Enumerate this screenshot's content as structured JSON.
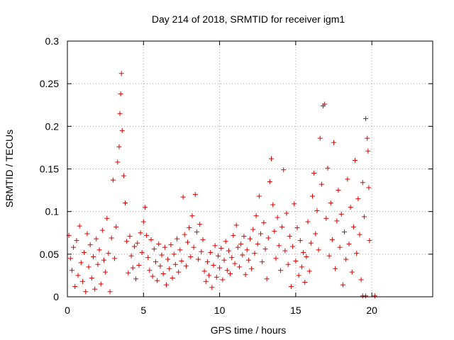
{
  "chart_data": {
    "type": "scatter",
    "title": "Day 214 of 2018, SRMTID for receiver igm1",
    "xlabel": "GPS time / hours",
    "ylabel": "SRMTID / TECUs",
    "xlim": [
      0,
      24
    ],
    "ylim": [
      0,
      0.3
    ],
    "xticks": [
      0,
      5,
      10,
      15,
      20
    ],
    "yticks": [
      0,
      0.05,
      0.1,
      0.15,
      0.2,
      0.25,
      0.3
    ],
    "xtick_labels": [
      "0",
      "5",
      "10",
      "15",
      "20"
    ],
    "ytick_labels": [
      "0",
      "0.05",
      "0.1",
      "0.15",
      "0.2",
      "0.25",
      "0.3"
    ],
    "grid": true,
    "marker": "+",
    "marker_color": "#e00000",
    "series": [
      {
        "name": "SRMTID",
        "points": [
          [
            0.1,
            0.072
          ],
          [
            0.2,
            0.045
          ],
          [
            0.3,
            0.031
          ],
          [
            0.4,
            0.058
          ],
          [
            0.5,
            0.012
          ],
          [
            0.6,
            0.066
          ],
          [
            0.7,
            0.025
          ],
          [
            0.8,
            0.083
          ],
          [
            0.9,
            0.04
          ],
          [
            1.0,
            0.018
          ],
          [
            1.1,
            0.052
          ],
          [
            1.2,
            0.006
          ],
          [
            1.3,
            0.074
          ],
          [
            1.4,
            0.035
          ],
          [
            1.5,
            0.061
          ],
          [
            1.6,
            0.022
          ],
          [
            1.7,
            0.047
          ],
          [
            1.8,
            0.009
          ],
          [
            1.9,
            0.068
          ],
          [
            2.0,
            0.038
          ],
          [
            2.1,
            0.055
          ],
          [
            2.2,
            0.015
          ],
          [
            2.3,
            0.078
          ],
          [
            2.4,
            0.043
          ],
          [
            2.5,
            0.029
          ],
          [
            2.6,
            0.092
          ],
          [
            2.7,
            0.051
          ],
          [
            2.8,
            0.006
          ],
          [
            2.9,
            0.069
          ],
          [
            3.0,
            0.137
          ],
          [
            3.1,
            0.045
          ],
          [
            3.2,
            0.082
          ],
          [
            3.3,
            0.158
          ],
          [
            3.4,
            0.176
          ],
          [
            3.45,
            0.215
          ],
          [
            3.5,
            0.238
          ],
          [
            3.55,
            0.262
          ],
          [
            3.6,
            0.195
          ],
          [
            3.7,
            0.142
          ],
          [
            3.8,
            0.11
          ],
          [
            3.9,
            0.065
          ],
          [
            4.0,
            0.028
          ],
          [
            4.1,
            0.071
          ],
          [
            4.2,
            0.048
          ],
          [
            4.3,
            0.034
          ],
          [
            4.4,
            0.059
          ],
          [
            4.5,
            0.021
          ],
          [
            4.6,
            0.063
          ],
          [
            4.7,
            0.037
          ],
          [
            4.8,
            0.075
          ],
          [
            4.9,
            0.052
          ],
          [
            5.0,
            0.088
          ],
          [
            5.1,
            0.105
          ],
          [
            5.2,
            0.072
          ],
          [
            5.3,
            0.046
          ],
          [
            5.4,
            0.031
          ],
          [
            5.5,
            0.067
          ],
          [
            5.6,
            0.024
          ],
          [
            5.7,
            0.056
          ],
          [
            5.8,
            0.041
          ],
          [
            5.9,
            0.019
          ],
          [
            6.0,
            0.062
          ],
          [
            6.1,
            0.036
          ],
          [
            6.2,
            0.049
          ],
          [
            6.3,
            0.027
          ],
          [
            6.4,
            0.058
          ],
          [
            6.5,
            0.014
          ],
          [
            6.6,
            0.044
          ],
          [
            6.7,
            0.033
          ],
          [
            6.8,
            0.061
          ],
          [
            6.9,
            0.022
          ],
          [
            7.0,
            0.05
          ],
          [
            7.1,
            0.038
          ],
          [
            7.2,
            0.068
          ],
          [
            7.3,
            0.029
          ],
          [
            7.4,
            0.055
          ],
          [
            7.5,
            0.042
          ],
          [
            7.6,
            0.117
          ],
          [
            7.7,
            0.073
          ],
          [
            7.8,
            0.036
          ],
          [
            7.9,
            0.064
          ],
          [
            8.0,
            0.081
          ],
          [
            8.1,
            0.047
          ],
          [
            8.2,
            0.095
          ],
          [
            8.3,
            0.058
          ],
          [
            8.4,
            0.12
          ],
          [
            8.5,
            0.076
          ],
          [
            8.6,
            0.044
          ],
          [
            8.7,
            0.085
          ],
          [
            8.8,
            0.053
          ],
          [
            8.9,
            0.067
          ],
          [
            9.0,
            0.03
          ],
          [
            9.1,
            0.018
          ],
          [
            9.2,
            0.041
          ],
          [
            9.3,
            0.025
          ],
          [
            9.4,
            0.052
          ],
          [
            9.5,
            0.011
          ],
          [
            9.6,
            0.037
          ],
          [
            9.7,
            0.06
          ],
          [
            9.8,
            0.023
          ],
          [
            9.9,
            0.048
          ],
          [
            10.0,
            0.034
          ],
          [
            10.1,
            0.057
          ],
          [
            10.2,
            0.02
          ],
          [
            10.3,
            0.043
          ],
          [
            10.4,
            0.065
          ],
          [
            10.5,
            0.031
          ],
          [
            10.6,
            0.054
          ],
          [
            10.7,
            0.027
          ],
          [
            10.8,
            0.046
          ],
          [
            10.9,
            0.072
          ],
          [
            11.0,
            0.039
          ],
          [
            11.1,
            0.084
          ],
          [
            11.2,
            0.058
          ],
          [
            11.3,
            0.035
          ],
          [
            11.4,
            0.062
          ],
          [
            11.5,
            0.049
          ],
          [
            11.6,
            0.071
          ],
          [
            11.7,
            0.026
          ],
          [
            11.8,
            0.055
          ],
          [
            11.9,
            0.043
          ],
          [
            12.0,
            0.068
          ],
          [
            12.1,
            0.033
          ],
          [
            12.2,
            0.079
          ],
          [
            12.3,
            0.051
          ],
          [
            12.4,
            0.095
          ],
          [
            12.5,
            0.062
          ],
          [
            12.6,
            0.118
          ],
          [
            12.7,
            0.074
          ],
          [
            12.8,
            0.041
          ],
          [
            12.9,
            0.087
          ],
          [
            13.0,
            0.056
          ],
          [
            13.1,
            0.021
          ],
          [
            13.2,
            0.069
          ],
          [
            13.3,
            0.135
          ],
          [
            13.4,
            0.162
          ],
          [
            13.5,
            0.108
          ],
          [
            13.6,
            0.077
          ],
          [
            13.7,
            0.045
          ],
          [
            13.8,
            0.093
          ],
          [
            13.9,
            0.06
          ],
          [
            14.0,
            0.031
          ],
          [
            14.1,
            0.082
          ],
          [
            14.2,
            0.149
          ],
          [
            14.3,
            0.054
          ],
          [
            14.4,
            0.098
          ],
          [
            14.5,
            0.038
          ],
          [
            14.6,
            0.071
          ],
          [
            14.7,
            0.012
          ],
          [
            14.8,
            0.059
          ],
          [
            14.9,
            0.109
          ],
          [
            15.0,
            0.042
          ],
          [
            15.1,
            0.081
          ],
          [
            15.2,
            0.025
          ],
          [
            15.3,
            0.066
          ],
          [
            15.4,
            0.035
          ],
          [
            15.5,
            0.052
          ],
          [
            15.6,
            0.017
          ],
          [
            15.7,
            0.047
          ],
          [
            15.8,
            0.088
          ],
          [
            15.9,
            0.03
          ],
          [
            16.0,
            0.063
          ],
          [
            16.1,
            0.118
          ],
          [
            16.2,
            0.145
          ],
          [
            16.3,
            0.074
          ],
          [
            16.4,
            0.101
          ],
          [
            16.5,
            0.055
          ],
          [
            16.6,
            0.186
          ],
          [
            16.7,
            0.132
          ],
          [
            16.8,
            0.224
          ],
          [
            16.9,
            0.226
          ],
          [
            17.0,
            0.092
          ],
          [
            17.1,
            0.151
          ],
          [
            17.2,
            0.048
          ],
          [
            17.3,
            0.11
          ],
          [
            17.4,
            0.067
          ],
          [
            17.5,
            0.181
          ],
          [
            17.6,
            0.033
          ],
          [
            17.7,
            0.089
          ],
          [
            17.8,
            0.125
          ],
          [
            17.9,
            0.058
          ],
          [
            18.0,
            0.097
          ],
          [
            18.1,
            0.014
          ],
          [
            18.2,
            0.076
          ],
          [
            18.3,
            0.044
          ],
          [
            18.4,
            0.138
          ],
          [
            18.5,
            0.062
          ],
          [
            18.6,
            0.105
          ],
          [
            18.7,
            0.029
          ],
          [
            18.8,
            0.082
          ],
          [
            18.9,
            0.16
          ],
          [
            19.0,
            0.051
          ],
          [
            19.1,
            0.115
          ],
          [
            19.2,
            0.073
          ],
          [
            19.3,
            0.02
          ],
          [
            19.4,
            0.134
          ],
          [
            19.5,
            0.094
          ],
          [
            19.6,
            0.209
          ],
          [
            19.7,
            0.186
          ],
          [
            19.75,
            0.171
          ],
          [
            19.8,
            0.128
          ],
          [
            19.85,
            0.066
          ],
          [
            19.4,
            0.001
          ],
          [
            19.6,
            0.001
          ],
          [
            20.2,
            0.001
          ]
        ]
      }
    ]
  }
}
